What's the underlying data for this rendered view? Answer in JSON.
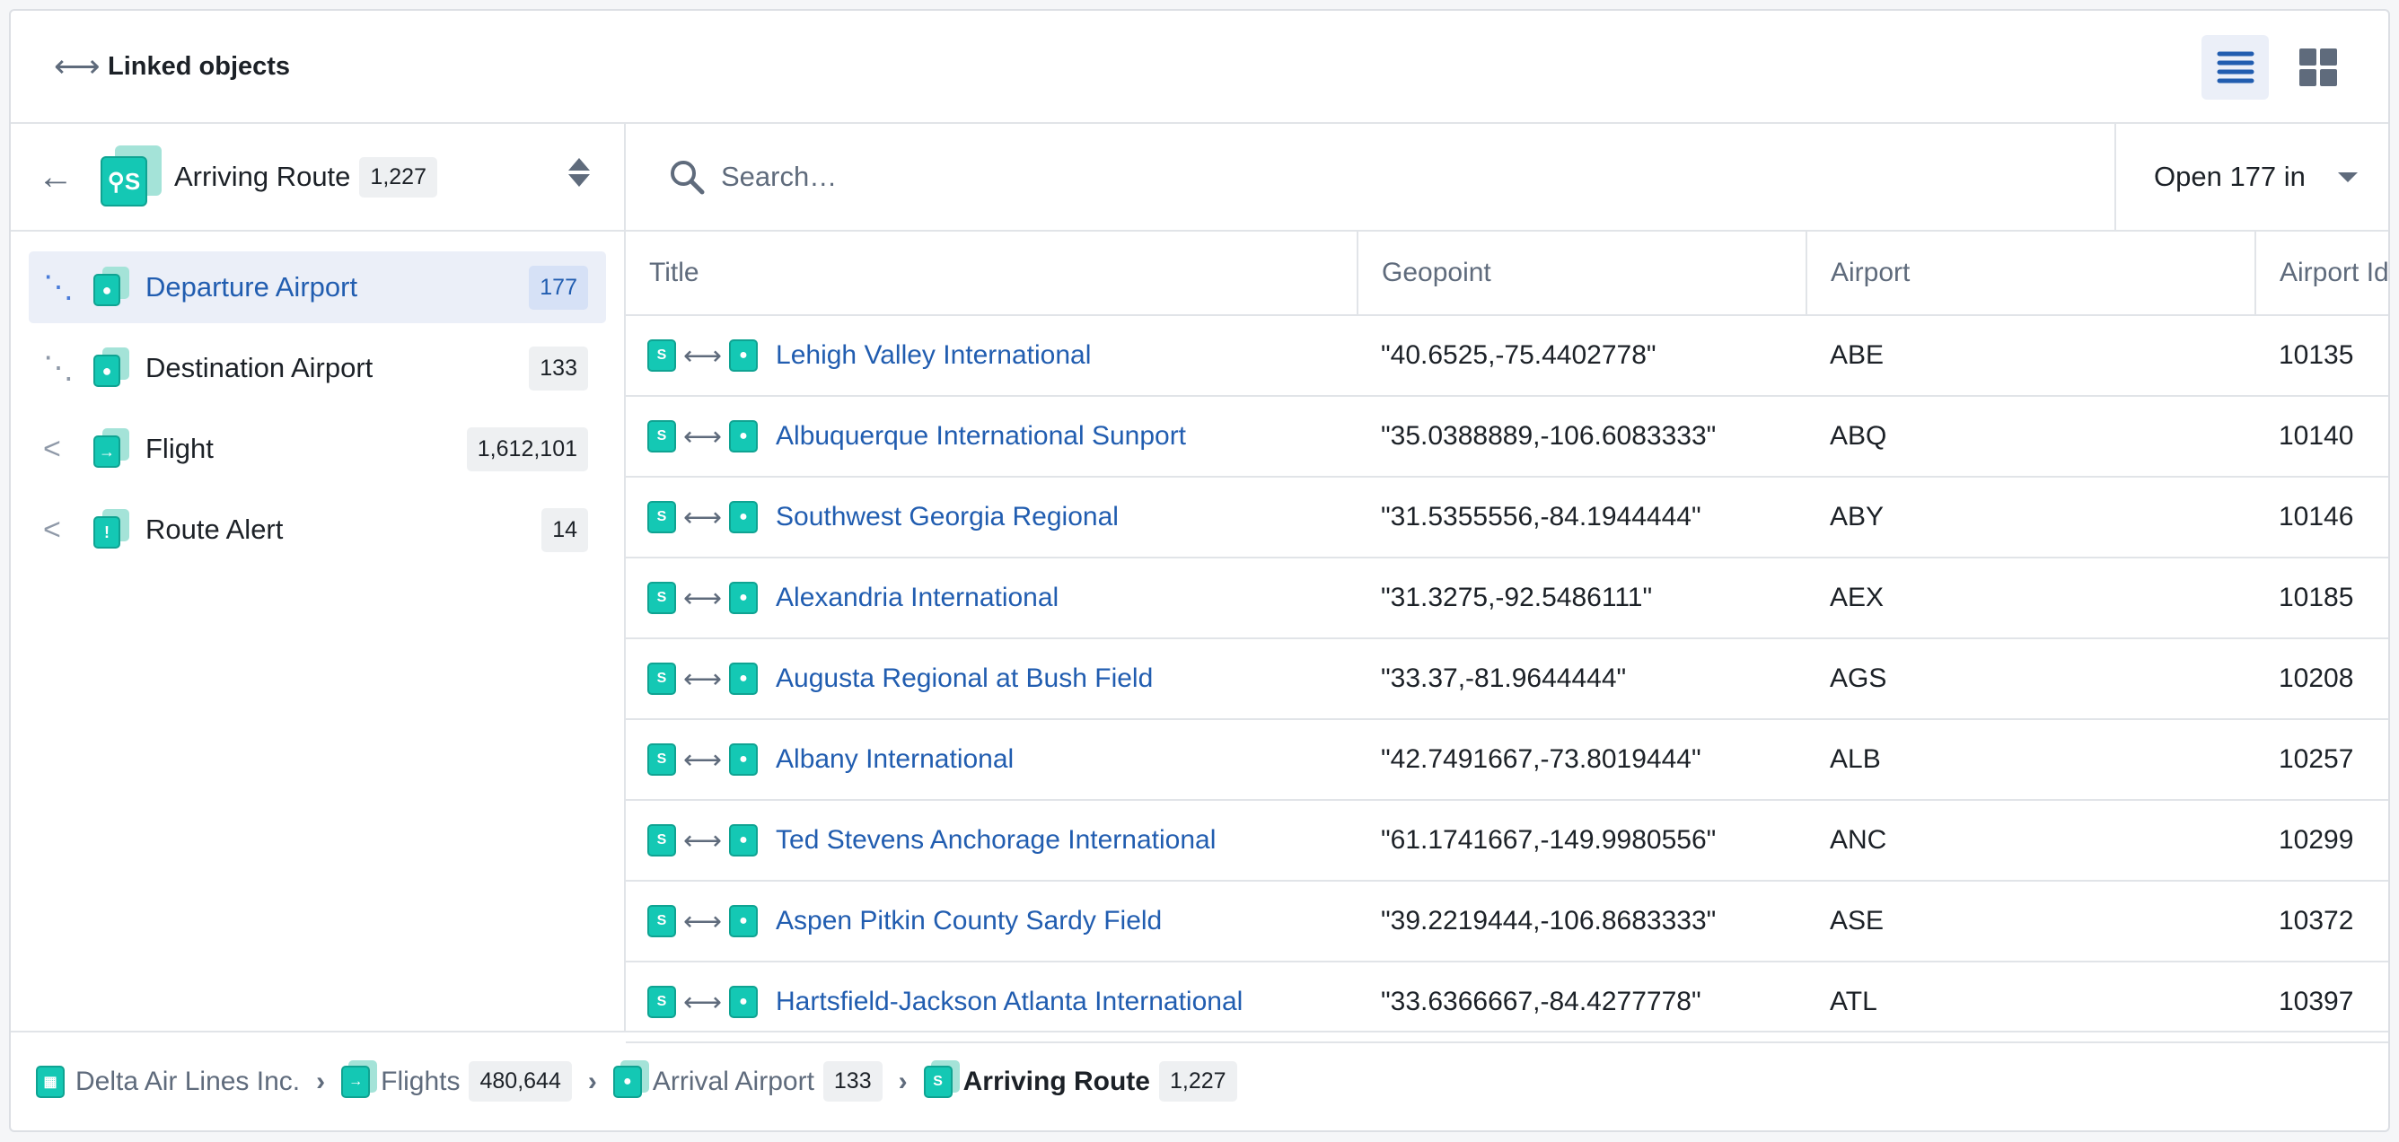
{
  "header": {
    "title": "Linked objects",
    "view_list_icon": "list-icon",
    "view_grid_icon": "grid-icon"
  },
  "left": {
    "object_type": "Arriving Route",
    "object_count": "1,227",
    "items": [
      {
        "label": "Departure Airport",
        "count": "177",
        "selected": true,
        "icon": "map-marker-icon"
      },
      {
        "label": "Destination Airport",
        "count": "133",
        "selected": false,
        "icon": "map-marker-icon"
      },
      {
        "label": "Flight",
        "count": "1,612,101",
        "selected": false,
        "icon": "flight-icon"
      },
      {
        "label": "Route Alert",
        "count": "14",
        "selected": false,
        "icon": "warning-icon"
      }
    ]
  },
  "search": {
    "placeholder": "Search…"
  },
  "open_button": {
    "label": "Open 177 in"
  },
  "table": {
    "columns": [
      "Title",
      "Geopoint",
      "Airport",
      "Airport Id"
    ],
    "rows": [
      {
        "title": "Lehigh Valley International",
        "geopoint": "\"40.6525,-75.4402778\"",
        "airport": "ABE",
        "id": "10135"
      },
      {
        "title": "Albuquerque International Sunport",
        "geopoint": "\"35.0388889,-106.6083333\"",
        "airport": "ABQ",
        "id": "10140"
      },
      {
        "title": "Southwest Georgia Regional",
        "geopoint": "\"31.5355556,-84.1944444\"",
        "airport": "ABY",
        "id": "10146"
      },
      {
        "title": "Alexandria International",
        "geopoint": "\"31.3275,-92.5486111\"",
        "airport": "AEX",
        "id": "10185"
      },
      {
        "title": "Augusta Regional at Bush Field",
        "geopoint": "\"33.37,-81.9644444\"",
        "airport": "AGS",
        "id": "10208"
      },
      {
        "title": "Albany International",
        "geopoint": "\"42.7491667,-73.8019444\"",
        "airport": "ALB",
        "id": "10257"
      },
      {
        "title": "Ted Stevens Anchorage International",
        "geopoint": "\"61.1741667,-149.9980556\"",
        "airport": "ANC",
        "id": "10299"
      },
      {
        "title": "Aspen Pitkin County Sardy Field",
        "geopoint": "\"39.2219444,-106.8683333\"",
        "airport": "ASE",
        "id": "10372"
      },
      {
        "title": "Hartsfield-Jackson Atlanta International",
        "geopoint": "\"33.6366667,-84.4277778\"",
        "airport": "ATL",
        "id": "10397"
      }
    ]
  },
  "breadcrumb": [
    {
      "label": "Delta Air Lines Inc.",
      "icon": "building-icon"
    },
    {
      "label": "Flights",
      "count": "480,644",
      "icon": "flight-icon"
    },
    {
      "label": "Arrival Airport",
      "count": "133",
      "icon": "map-marker-icon"
    },
    {
      "label": "Arriving Route",
      "count": "1,227",
      "icon": "route-icon"
    }
  ],
  "colors": {
    "accent": "#215db0",
    "object_icon": "#14c8b4",
    "selected_bg": "#ebeff8"
  }
}
